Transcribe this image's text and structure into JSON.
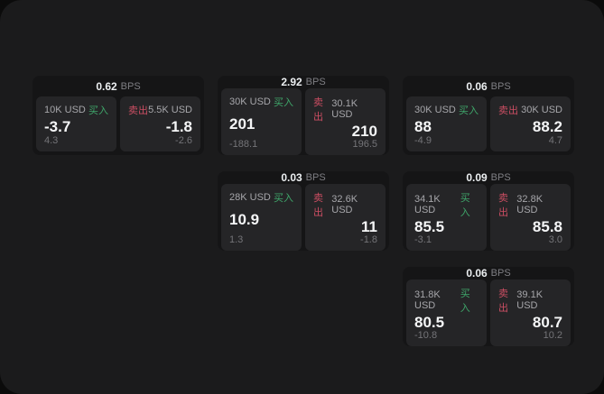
{
  "labels": {
    "bps_unit": "BPS",
    "buy": "买入",
    "sell": "卖出"
  },
  "colors": {
    "buy_green": "#3fa66a",
    "sell_red": "#cc4e63",
    "app_background": "#1b1b1c",
    "card_background": "#151516",
    "panel_background": "#252527"
  },
  "cards": [
    {
      "bps": "0.62",
      "grid": {
        "col": 0,
        "row": 0
      },
      "buy": {
        "size": "10K USD",
        "value": "-3.7",
        "delta": "4.3"
      },
      "sell": {
        "size": "5.5K USD",
        "value": "-1.8",
        "delta": "-2.6"
      }
    },
    {
      "bps": "2.92",
      "grid": {
        "col": 1,
        "row": 0
      },
      "buy": {
        "size": "30K USD",
        "value": "201",
        "delta": "-188.1"
      },
      "sell": {
        "size": "30.1K USD",
        "value": "210",
        "delta": "196.5"
      }
    },
    {
      "bps": "0.06",
      "grid": {
        "col": 2,
        "row": 0
      },
      "buy": {
        "size": "30K USD",
        "value": "88",
        "delta": "-4.9"
      },
      "sell": {
        "size": "30K USD",
        "value": "88.2",
        "delta": "4.7"
      }
    },
    {
      "bps": "0.03",
      "grid": {
        "col": 1,
        "row": 1
      },
      "buy": {
        "size": "28K USD",
        "value": "10.9",
        "delta": "1.3"
      },
      "sell": {
        "size": "32.6K USD",
        "value": "11",
        "delta": "-1.8"
      }
    },
    {
      "bps": "0.09",
      "grid": {
        "col": 2,
        "row": 1
      },
      "buy": {
        "size": "34.1K USD",
        "value": "85.5",
        "delta": "-3.1"
      },
      "sell": {
        "size": "32.8K USD",
        "value": "85.8",
        "delta": "3.0"
      }
    },
    {
      "bps": "0.06",
      "grid": {
        "col": 2,
        "row": 2
      },
      "buy": {
        "size": "31.8K USD",
        "value": "80.5",
        "delta": "-10.8"
      },
      "sell": {
        "size": "39.1K USD",
        "value": "80.7",
        "delta": "10.2"
      }
    }
  ]
}
